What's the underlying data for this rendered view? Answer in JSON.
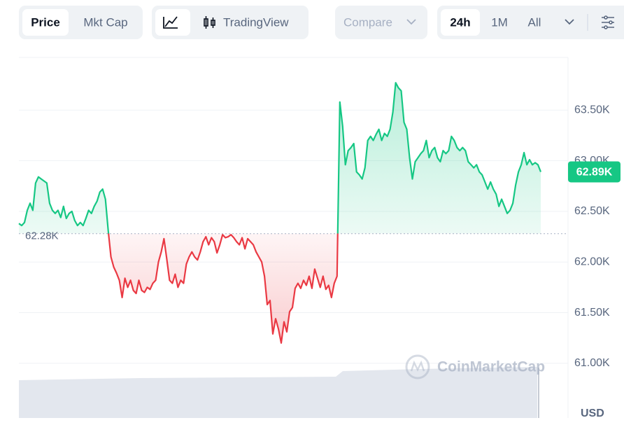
{
  "toolbar": {
    "price": "Price",
    "mkt_cap": "Mkt Cap",
    "trading_view": "TradingView",
    "compare": "Compare",
    "range_24h": "24h",
    "range_1m": "1M",
    "range_all": "All"
  },
  "chart_data": {
    "type": "line",
    "values": [
      62.38,
      62.36,
      62.39,
      62.51,
      62.58,
      62.51,
      62.78,
      62.84,
      62.82,
      62.8,
      62.78,
      62.58,
      62.51,
      62.48,
      62.51,
      62.44,
      62.55,
      62.43,
      62.48,
      62.5,
      62.41,
      62.36,
      62.39,
      62.36,
      62.43,
      62.51,
      62.48,
      62.55,
      62.6,
      62.69,
      62.72,
      62.62,
      62.31,
      62.05,
      61.95,
      61.89,
      61.82,
      61.65,
      61.84,
      61.75,
      61.82,
      61.72,
      61.69,
      61.82,
      61.72,
      61.7,
      61.75,
      61.73,
      61.79,
      61.82,
      62.0,
      62.1,
      62.23,
      62.03,
      61.82,
      61.79,
      61.88,
      61.75,
      61.82,
      61.79,
      61.98,
      62.05,
      62.1,
      62.05,
      62.02,
      62.1,
      62.2,
      62.25,
      62.17,
      62.24,
      62.2,
      62.09,
      62.17,
      62.27,
      62.24,
      62.25,
      62.27,
      62.24,
      62.2,
      62.17,
      62.24,
      62.13,
      62.23,
      62.2,
      62.17,
      62.1,
      62.05,
      62.0,
      61.86,
      61.58,
      61.62,
      61.29,
      61.44,
      61.34,
      61.2,
      61.41,
      61.31,
      61.51,
      61.55,
      61.74,
      61.79,
      61.74,
      61.82,
      61.77,
      61.86,
      61.74,
      61.93,
      61.84,
      61.75,
      61.86,
      61.73,
      61.77,
      61.65,
      61.79,
      61.86,
      63.58,
      63.34,
      62.96,
      63.1,
      63.13,
      63.17,
      62.89,
      62.86,
      62.82,
      62.93,
      63.2,
      63.24,
      63.2,
      63.26,
      63.31,
      63.2,
      63.27,
      63.24,
      63.31,
      63.48,
      63.77,
      63.72,
      63.69,
      63.38,
      63.31,
      63.03,
      62.82,
      62.99,
      63.03,
      63.07,
      63.1,
      63.2,
      63.03,
      63.1,
      63.13,
      63.03,
      62.99,
      63.1,
      63.07,
      63.1,
      63.24,
      63.2,
      63.13,
      63.1,
      63.13,
      63.1,
      62.99,
      62.96,
      62.93,
      62.96,
      62.89,
      62.86,
      62.79,
      62.72,
      62.79,
      62.72,
      62.67,
      62.55,
      62.62,
      62.55,
      62.48,
      62.51,
      62.58,
      62.76,
      62.89,
      62.96,
      63.08,
      62.96,
      63.01,
      62.96,
      62.98,
      62.96,
      62.89
    ],
    "up_color": "#16c784",
    "down_color": "#ea3943",
    "ylim": [
      60.46,
      64.02
    ],
    "yticks": [
      {
        "value": 61.0,
        "label": "61.00K"
      },
      {
        "value": 61.5,
        "label": "61.50K"
      },
      {
        "value": 62.0,
        "label": "62.00K"
      },
      {
        "value": 62.5,
        "label": "62.50K"
      },
      {
        "value": 63.0,
        "label": "63.00K"
      },
      {
        "value": 63.5,
        "label": "63.50K"
      }
    ],
    "grid": true,
    "baseline": {
      "value": 62.28,
      "label": "62.28K"
    },
    "current": {
      "value": 62.89,
      "label": "62.89K"
    },
    "currency": "USD",
    "watermark": "CoinMarketCap"
  }
}
